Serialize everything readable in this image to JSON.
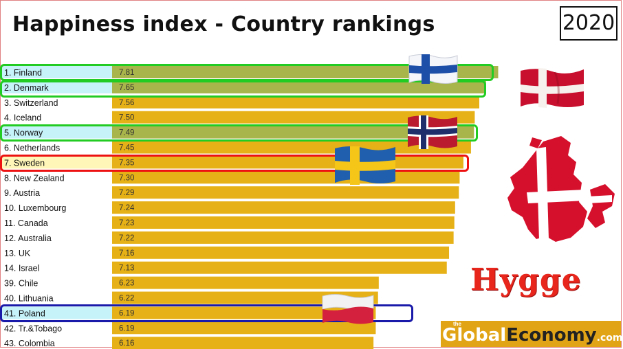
{
  "header": {
    "title": "Happiness index - Country rankings",
    "year": "2020"
  },
  "branding": {
    "hygge": "Hygge",
    "logo_the": "the",
    "logo_global": "Global",
    "logo_economy": "Economy",
    "logo_com": ".com"
  },
  "colors": {
    "bar": "#e6b117",
    "bar_highlight": "#a8b54a",
    "label_highlight_blue": "#c6f2fa",
    "label_highlight_yellow": "#fff6b8",
    "box_green": "#22cc22",
    "box_red": "#ee1111",
    "box_blue": "#1a1aaa"
  },
  "icons": [
    "finland-flag-icon",
    "denmark-flag-icon",
    "norway-flag-icon",
    "sweden-flag-icon",
    "poland-flag-icon",
    "denmark-map-icon"
  ],
  "chart_data": {
    "type": "bar",
    "orientation": "horizontal",
    "categories": [
      "1. Finland",
      "2. Denmark",
      "3. Switzerland",
      "4. Iceland",
      "5. Norway",
      "6. Netherlands",
      "7. Sweden",
      "8. New Zealand",
      "9. Austria",
      "10. Luxembourg",
      "11. Canada",
      "12. Australia",
      "13. UK",
      "14. Israel",
      "39. Chile",
      "40. Lithuania",
      "41. Poland",
      "42. Tr.&Tobago",
      "43. Colombia"
    ],
    "value_labels": [
      "7.81",
      "7.65",
      "7.56",
      "7.50",
      "7.49",
      "7.45",
      "7.35",
      "7.30",
      "7.29",
      "7.24",
      "7.23",
      "7.22",
      "7.16",
      "7.13",
      "6.23",
      "6.22",
      "6.19",
      "6.19",
      "6.16"
    ],
    "values": [
      7.81,
      7.65,
      7.56,
      7.5,
      7.49,
      7.45,
      7.35,
      7.3,
      7.29,
      7.24,
      7.23,
      7.22,
      7.16,
      7.13,
      6.23,
      6.22,
      6.19,
      6.19,
      6.16
    ],
    "highlighted": [
      {
        "category": "1. Finland",
        "box": "green"
      },
      {
        "category": "2. Denmark",
        "box": "green"
      },
      {
        "category": "5. Norway",
        "box": "green"
      },
      {
        "category": "7. Sweden",
        "box": "red"
      },
      {
        "category": "41. Poland",
        "box": "blue"
      }
    ],
    "title": "Happiness index - Country rankings",
    "xlabel": "",
    "ylabel": "",
    "grid": false,
    "legend": "none"
  }
}
